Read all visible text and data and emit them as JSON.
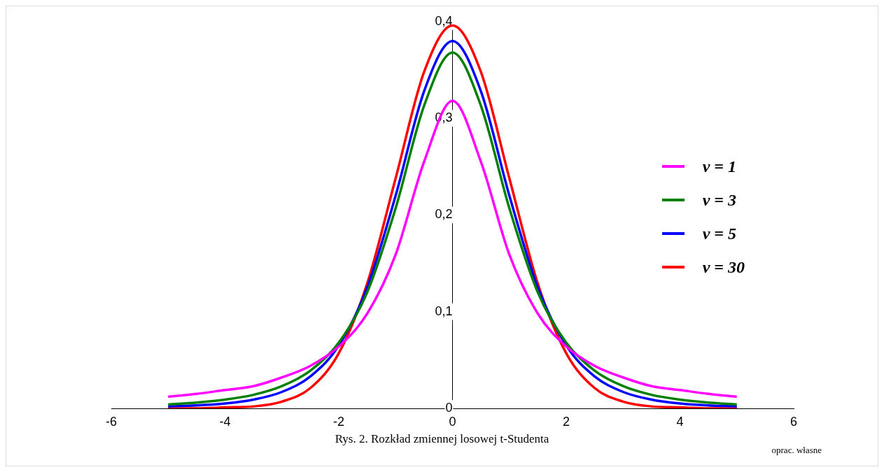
{
  "chart_data": {
    "type": "line",
    "title": "Rys. 2. Rozkład zmiennej losowej t-Studenta",
    "annotations": [
      "oprac. własne"
    ],
    "x": [
      -5,
      -4.5,
      -4,
      -3.5,
      -3,
      -2.5,
      -2,
      -1.5,
      -1,
      -0.5,
      0,
      0.5,
      1,
      1.5,
      2,
      2.5,
      3,
      3.5,
      4,
      4.5,
      5
    ],
    "series": [
      {
        "name": "v = 1",
        "color": "#ff00ff",
        "values": [
          0.012,
          0.015,
          0.019,
          0.023,
          0.032,
          0.044,
          0.064,
          0.098,
          0.159,
          0.255,
          0.318,
          0.255,
          0.159,
          0.098,
          0.064,
          0.044,
          0.032,
          0.023,
          0.019,
          0.015,
          0.012
        ]
      },
      {
        "name": "v = 3",
        "color": "#008000",
        "values": [
          0.004,
          0.006,
          0.009,
          0.014,
          0.023,
          0.039,
          0.068,
          0.12,
          0.207,
          0.313,
          0.368,
          0.313,
          0.207,
          0.12,
          0.068,
          0.039,
          0.023,
          0.014,
          0.009,
          0.006,
          0.004
        ]
      },
      {
        "name": "v = 5",
        "color": "#0000ff",
        "values": [
          0.002,
          0.003,
          0.005,
          0.009,
          0.017,
          0.033,
          0.065,
          0.125,
          0.22,
          0.328,
          0.38,
          0.328,
          0.22,
          0.125,
          0.065,
          0.033,
          0.017,
          0.009,
          0.005,
          0.003,
          0.002
        ]
      },
      {
        "name": "v = 30",
        "color": "#ff0000",
        "values": [
          0,
          0,
          0.001,
          0.002,
          0.007,
          0.021,
          0.057,
          0.129,
          0.238,
          0.348,
          0.396,
          0.348,
          0.238,
          0.129,
          0.057,
          0.021,
          0.007,
          0.002,
          0.001,
          0,
          0
        ]
      }
    ],
    "xlim": [
      -6,
      6
    ],
    "xticks": [
      -6,
      -4,
      -2,
      0,
      2,
      4,
      6
    ],
    "ylim": [
      0,
      0.4
    ],
    "yticks": [
      {
        "value": 0,
        "label": "0"
      },
      {
        "value": 0.1,
        "label": "0,1"
      },
      {
        "value": 0.2,
        "label": "0,2"
      },
      {
        "value": 0.3,
        "label": "0,3"
      },
      {
        "value": 0.4,
        "label": "0,4"
      }
    ],
    "grid": false,
    "legend": "right",
    "marker": "none",
    "line_style": "solid"
  }
}
